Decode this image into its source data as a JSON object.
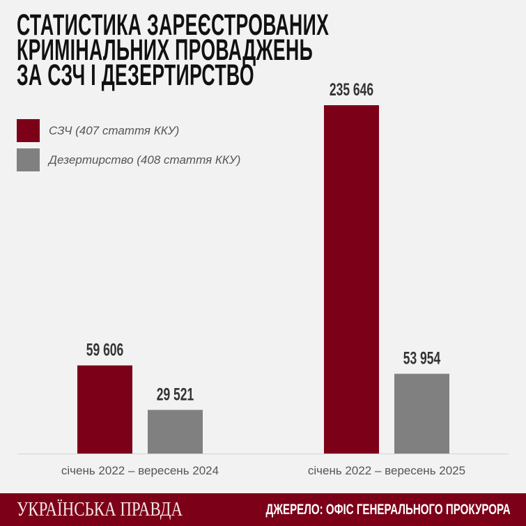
{
  "chart_data": {
    "type": "bar",
    "title_lines": [
      "СТАТИСТИКА ЗАРЕЄСТРОВАНИХ",
      "КРИМІНАЛЬНИХ ПРОВАДЖЕНЬ",
      "ЗА СЗЧ І ДЕЗЕРТИРСТВО"
    ],
    "categories": [
      "січень 2022 – вересень 2024",
      "січень 2022 – вересень 2025"
    ],
    "series": [
      {
        "name": "СЗЧ (407 стаття ККУ)",
        "color": "#7d0019",
        "values": [
          59606,
          235646
        ],
        "labels": [
          "59 606",
          "235 646"
        ]
      },
      {
        "name": "Дезертирство (408 стаття ККУ)",
        "color": "#808080",
        "values": [
          29521,
          53954
        ],
        "labels": [
          "29 521",
          "53 954"
        ]
      }
    ],
    "ylim": [
      0,
      235646
    ],
    "grid": false,
    "legend": "top-left"
  },
  "footer": {
    "brand": "УКРАЇНСЬКА ПРАВДА",
    "source": "ДЖЕРЕЛО: ОФІС ГЕНЕРАЛЬНОГО ПРОКУРОРА"
  }
}
